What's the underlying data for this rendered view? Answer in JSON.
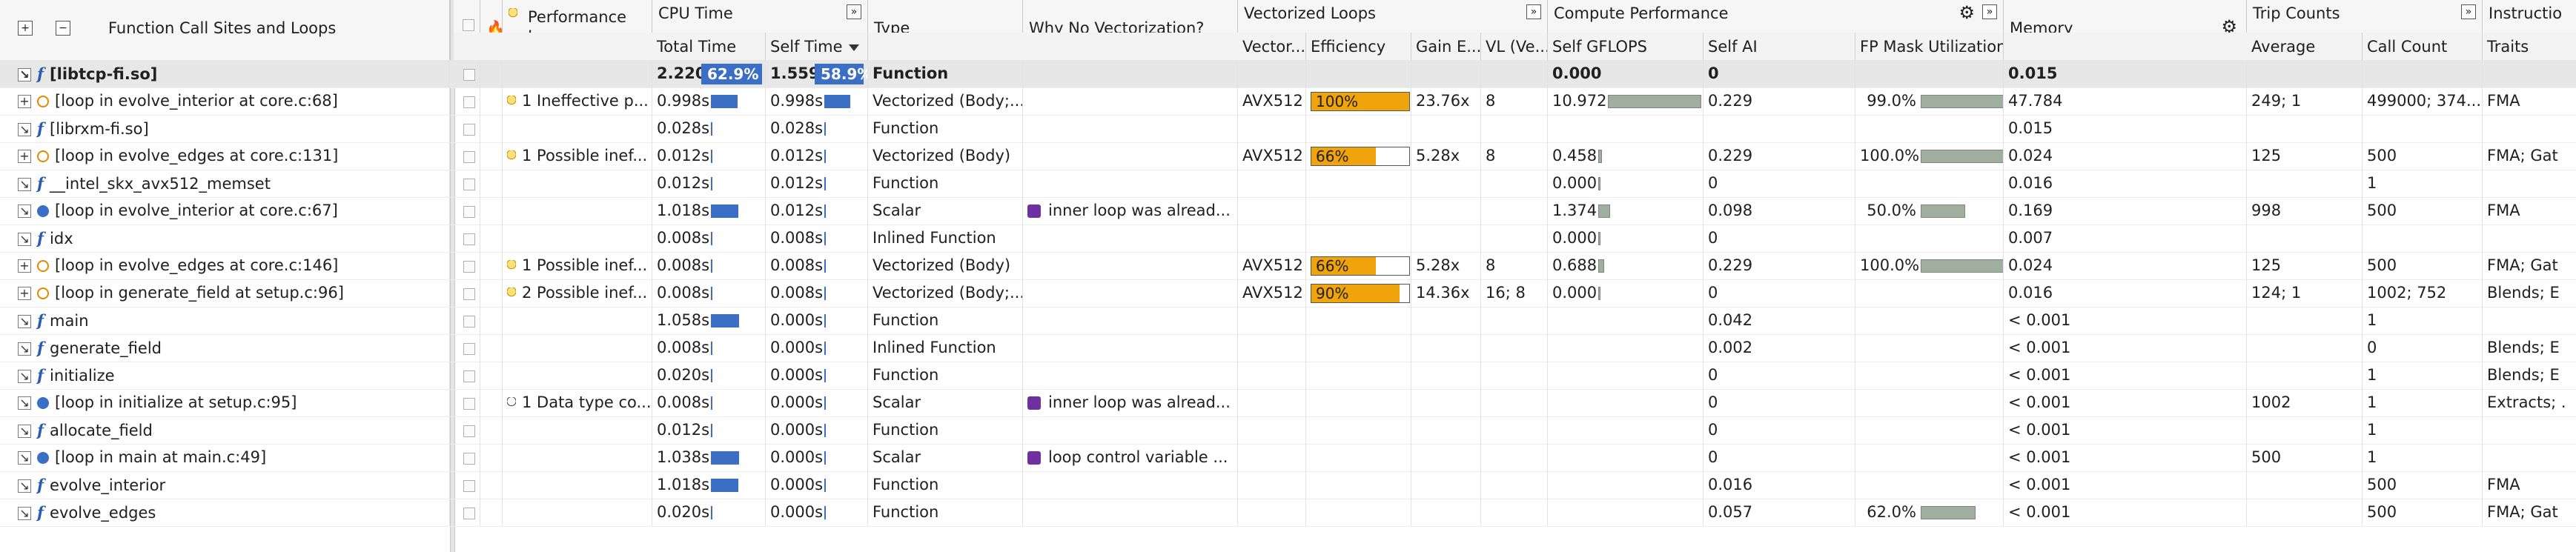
{
  "headers": {
    "function_call_sites": "Function Call Sites and Loops",
    "performance_issues": "Performance Issues",
    "cpu_time": "CPU Time",
    "total_time": "Total Time",
    "self_time": "Self Time",
    "type": "Type",
    "why_no_vec": "Why No Vectorization?",
    "vectorized_loops": "Vectorized Loops",
    "vector": "Vector...",
    "efficiency": "Efficiency",
    "gain": "Gain E...",
    "vl": "VL (Ve...",
    "compute_perf": "Compute Performance",
    "self_gflops": "Self GFLOPS",
    "self_ai": "Self AI",
    "fp_mask": "FP Mask Utilization",
    "memory": "Memory",
    "trip_counts": "Trip Counts",
    "average": "Average",
    "call_count": "Call Count",
    "instructions": "Instructio",
    "traits": "Traits"
  },
  "icons": {
    "expand_all": "plus",
    "collapse_all": "minus",
    "checkbox": "checkbox-icon",
    "flame": "flame-icon",
    "bulb": "bulb-icon",
    "expand_column": "double-chevron-right-icon",
    "settings": "gear-icon",
    "sort_desc": "sort-descending-icon"
  },
  "colors": {
    "accent_blue": "#3b6fc6",
    "efficiency_orange": "#f0a30a",
    "gray_bar": "#9fae9f",
    "reason_purple": "#7030a0"
  },
  "rows": [
    {
      "name": "[libtcp-fi.so]",
      "kind": "func",
      "exp": "collapse",
      "issues": "",
      "bulb": "",
      "total": "2.220s",
      "total_pct": "62.9%",
      "self": "1.559s",
      "self_pct": "58.9%",
      "type": "Function",
      "why": "",
      "why_icon": false,
      "vector": "",
      "eff": "",
      "eff_val": 0,
      "gain": "",
      "vl": "",
      "gflops": "0.000",
      "gflops_bar": 0,
      "ai": "0",
      "fp": "",
      "fp_bar": 0,
      "memory": "0.015",
      "avg": "",
      "calls": "",
      "traits": "",
      "bold": true
    },
    {
      "name": "[loop in evolve_interior at core.c:68]",
      "kind": "loop",
      "exp": "expand",
      "issues": "1 Ineffective p...",
      "bulb": "on",
      "total": "0.998s",
      "total_bar": 0.45,
      "self": "0.998s",
      "self_bar": 0.64,
      "type": "Vectorized (Body;...",
      "why": "",
      "why_icon": false,
      "vector": "AVX512",
      "eff": "100%",
      "eff_val": 1.0,
      "gain": "23.76x",
      "vl": "8",
      "gflops": "10.972",
      "gflops_bar": 1.0,
      "ai": "0.229",
      "fp": "99.0%",
      "fp_bar": 0.99,
      "memory": "47.784",
      "avg": "249; 1",
      "calls": "499000; 374...",
      "traits": "FMA"
    },
    {
      "name": "[librxm-fi.so]",
      "kind": "func",
      "exp": "collapse",
      "issues": "",
      "bulb": "",
      "total": "0.028s",
      "total_bar": 0.02,
      "self": "0.028s",
      "self_bar": 0.02,
      "type": "Function",
      "why": "",
      "why_icon": false,
      "vector": "",
      "eff": "",
      "eff_val": 0,
      "gain": "",
      "vl": "",
      "gflops": "",
      "gflops_bar": 0,
      "ai": "",
      "fp": "",
      "fp_bar": 0,
      "memory": "0.015",
      "avg": "",
      "calls": "",
      "traits": ""
    },
    {
      "name": "[loop in evolve_edges at core.c:131]",
      "kind": "loop",
      "exp": "expand",
      "issues": "1 Possible inef...",
      "bulb": "on",
      "total": "0.012s",
      "total_bar": 0.01,
      "self": "0.012s",
      "self_bar": 0.01,
      "type": "Vectorized (Body)",
      "why": "",
      "why_icon": false,
      "vector": "AVX512",
      "eff": "66%",
      "eff_val": 0.66,
      "gain": "5.28x",
      "vl": "8",
      "gflops": "0.458",
      "gflops_bar": 0.04,
      "ai": "0.229",
      "fp": "100.0%",
      "fp_bar": 1.0,
      "memory": "0.024",
      "avg": "125",
      "calls": "500",
      "traits": "FMA; Gat"
    },
    {
      "name": "__intel_skx_avx512_memset",
      "kind": "func",
      "exp": "collapse",
      "issues": "",
      "bulb": "",
      "total": "0.012s",
      "total_bar": 0.01,
      "self": "0.012s",
      "self_bar": 0.01,
      "type": "Function",
      "why": "",
      "why_icon": false,
      "vector": "",
      "eff": "",
      "eff_val": 0,
      "gain": "",
      "vl": "",
      "gflops": "0.000",
      "gflops_bar": 0.01,
      "ai": "0",
      "fp": "",
      "fp_bar": 0,
      "memory": "0.016",
      "avg": "",
      "calls": "1",
      "traits": ""
    },
    {
      "name": "[loop in evolve_interior at core.c:67]",
      "kind": "loopblue",
      "exp": "collapse",
      "issues": "",
      "bulb": "",
      "total": "1.018s",
      "total_bar": 0.46,
      "self": "0.012s",
      "self_bar": 0.01,
      "type": "Scalar",
      "why": "inner loop was alread...",
      "why_icon": true,
      "vector": "",
      "eff": "",
      "eff_val": 0,
      "gain": "",
      "vl": "",
      "gflops": "1.374",
      "gflops_bar": 0.13,
      "ai": "0.098",
      "fp": "50.0%",
      "fp_bar": 0.5,
      "memory": "0.169",
      "avg": "998",
      "calls": "500",
      "traits": "FMA"
    },
    {
      "name": "idx",
      "kind": "func",
      "exp": "collapse",
      "issues": "",
      "bulb": "",
      "total": "0.008s",
      "total_bar": 0.01,
      "self": "0.008s",
      "self_bar": 0.01,
      "type": "Inlined Function",
      "why": "",
      "why_icon": false,
      "vector": "",
      "eff": "",
      "eff_val": 0,
      "gain": "",
      "vl": "",
      "gflops": "0.000",
      "gflops_bar": 0.01,
      "ai": "0",
      "fp": "",
      "fp_bar": 0,
      "memory": "0.007",
      "avg": "",
      "calls": "",
      "traits": ""
    },
    {
      "name": "[loop in evolve_edges at core.c:146]",
      "kind": "loop",
      "exp": "expand",
      "issues": "1 Possible inef...",
      "bulb": "on",
      "total": "0.008s",
      "total_bar": 0.01,
      "self": "0.008s",
      "self_bar": 0.01,
      "type": "Vectorized (Body)",
      "why": "",
      "why_icon": false,
      "vector": "AVX512",
      "eff": "66%",
      "eff_val": 0.66,
      "gain": "5.28x",
      "vl": "8",
      "gflops": "0.688",
      "gflops_bar": 0.06,
      "ai": "0.229",
      "fp": "100.0%",
      "fp_bar": 1.0,
      "memory": "0.024",
      "avg": "125",
      "calls": "500",
      "traits": "FMA; Gat"
    },
    {
      "name": "[loop in generate_field at setup.c:96]",
      "kind": "loop",
      "exp": "expand",
      "issues": "2 Possible inef...",
      "bulb": "on",
      "total": "0.008s",
      "total_bar": 0.01,
      "self": "0.008s",
      "self_bar": 0.01,
      "type": "Vectorized (Body;...",
      "why": "",
      "why_icon": false,
      "vector": "AVX512",
      "eff": "90%",
      "eff_val": 0.9,
      "gain": "14.36x",
      "vl": "16; 8",
      "gflops": "0.000",
      "gflops_bar": 0.01,
      "ai": "0",
      "fp": "",
      "fp_bar": 0,
      "memory": "0.016",
      "avg": "124; 1",
      "calls": "1002; 752",
      "traits": "Blends; E"
    },
    {
      "name": "main",
      "kind": "func",
      "exp": "collapse",
      "issues": "",
      "bulb": "",
      "total": "1.058s",
      "total_bar": 0.48,
      "self": "0.000s",
      "self_bar": 0.01,
      "type": "Function",
      "why": "",
      "why_icon": false,
      "vector": "",
      "eff": "",
      "eff_val": 0,
      "gain": "",
      "vl": "",
      "gflops": "",
      "gflops_bar": 0,
      "ai": "0.042",
      "fp": "",
      "fp_bar": 0,
      "memory": "< 0.001",
      "avg": "",
      "calls": "1",
      "traits": ""
    },
    {
      "name": "generate_field",
      "kind": "func",
      "exp": "collapse",
      "issues": "",
      "bulb": "",
      "total": "0.008s",
      "total_bar": 0.01,
      "self": "0.000s",
      "self_bar": 0.01,
      "type": "Inlined Function",
      "why": "",
      "why_icon": false,
      "vector": "",
      "eff": "",
      "eff_val": 0,
      "gain": "",
      "vl": "",
      "gflops": "",
      "gflops_bar": 0,
      "ai": "0.002",
      "fp": "",
      "fp_bar": 0,
      "memory": "< 0.001",
      "avg": "",
      "calls": "0",
      "traits": "Blends; E"
    },
    {
      "name": "initialize",
      "kind": "func",
      "exp": "collapse",
      "issues": "",
      "bulb": "",
      "total": "0.020s",
      "total_bar": 0.01,
      "self": "0.000s",
      "self_bar": 0.01,
      "type": "Function",
      "why": "",
      "why_icon": false,
      "vector": "",
      "eff": "",
      "eff_val": 0,
      "gain": "",
      "vl": "",
      "gflops": "",
      "gflops_bar": 0,
      "ai": "0",
      "fp": "",
      "fp_bar": 0,
      "memory": "< 0.001",
      "avg": "",
      "calls": "1",
      "traits": "Blends; E"
    },
    {
      "name": "[loop in initialize at setup.c:95]",
      "kind": "loopblue",
      "exp": "collapse",
      "issues": "1 Data type co...",
      "bulb": "off",
      "total": "0.008s",
      "total_bar": 0.01,
      "self": "0.000s",
      "self_bar": 0.01,
      "type": "Scalar",
      "why": "inner loop was alread...",
      "why_icon": true,
      "vector": "",
      "eff": "",
      "eff_val": 0,
      "gain": "",
      "vl": "",
      "gflops": "",
      "gflops_bar": 0,
      "ai": "0",
      "fp": "",
      "fp_bar": 0,
      "memory": "< 0.001",
      "avg": "1002",
      "calls": "1",
      "traits": "Extracts; ."
    },
    {
      "name": "allocate_field",
      "kind": "func",
      "exp": "collapse",
      "issues": "",
      "bulb": "",
      "total": "0.012s",
      "total_bar": 0.01,
      "self": "0.000s",
      "self_bar": 0.01,
      "type": "Function",
      "why": "",
      "why_icon": false,
      "vector": "",
      "eff": "",
      "eff_val": 0,
      "gain": "",
      "vl": "",
      "gflops": "",
      "gflops_bar": 0,
      "ai": "0",
      "fp": "",
      "fp_bar": 0,
      "memory": "< 0.001",
      "avg": "",
      "calls": "1",
      "traits": ""
    },
    {
      "name": "[loop in main at main.c:49]",
      "kind": "loopblue",
      "exp": "collapse",
      "issues": "",
      "bulb": "",
      "total": "1.038s",
      "total_bar": 0.47,
      "self": "0.000s",
      "self_bar": 0.01,
      "type": "Scalar",
      "why": "loop control variable ...",
      "why_icon": true,
      "vector": "",
      "eff": "",
      "eff_val": 0,
      "gain": "",
      "vl": "",
      "gflops": "",
      "gflops_bar": 0,
      "ai": "0",
      "fp": "",
      "fp_bar": 0,
      "memory": "< 0.001",
      "avg": "500",
      "calls": "1",
      "traits": ""
    },
    {
      "name": "evolve_interior",
      "kind": "func",
      "exp": "collapse",
      "issues": "",
      "bulb": "",
      "total": "1.018s",
      "total_bar": 0.46,
      "self": "0.000s",
      "self_bar": 0.01,
      "type": "Function",
      "why": "",
      "why_icon": false,
      "vector": "",
      "eff": "",
      "eff_val": 0,
      "gain": "",
      "vl": "",
      "gflops": "",
      "gflops_bar": 0,
      "ai": "0.016",
      "fp": "",
      "fp_bar": 0,
      "memory": "< 0.001",
      "avg": "",
      "calls": "500",
      "traits": "FMA"
    },
    {
      "name": "evolve_edges",
      "kind": "func",
      "exp": "collapse",
      "issues": "",
      "bulb": "",
      "total": "0.020s",
      "total_bar": 0.01,
      "self": "0.000s",
      "self_bar": 0.01,
      "type": "Function",
      "why": "",
      "why_icon": false,
      "vector": "",
      "eff": "",
      "eff_val": 0,
      "gain": "",
      "vl": "",
      "gflops": "",
      "gflops_bar": 0,
      "ai": "0.057",
      "fp": "62.0%",
      "fp_bar": 0.62,
      "memory": "< 0.001",
      "avg": "",
      "calls": "500",
      "traits": "FMA; Gat"
    }
  ]
}
